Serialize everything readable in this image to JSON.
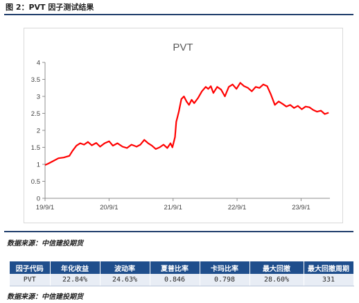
{
  "figure_title": "图 2：PVT 因子测试结果",
  "source_label": "数据来源：中信建投期货",
  "table": {
    "headers": [
      "因子代码",
      "年化收益",
      "波动率",
      "夏普比率",
      "卡玛比率",
      "最大回撤",
      "最大回撤周期"
    ],
    "rows": [
      [
        "PVT",
        "22.84%",
        "24.63%",
        "0.846",
        "0.798",
        "28.60%",
        "331"
      ]
    ]
  },
  "chart_data": {
    "type": "line",
    "title": "PVT",
    "xlabel": "",
    "ylabel": "",
    "ylim": [
      0,
      4
    ],
    "y_ticks": [
      "0",
      "0.5",
      "1",
      "1.5",
      "2",
      "2.5",
      "3",
      "3.5",
      "4"
    ],
    "x_ticks": [
      "19/9/1",
      "20/9/1",
      "21/9/1",
      "22/9/1",
      "23/9/1"
    ],
    "x_tick_values": [
      2019.67,
      2020.67,
      2021.67,
      2022.67,
      2023.67
    ],
    "xlim": [
      2019.67,
      2024.12
    ],
    "grid": false,
    "legend": "none",
    "line_color": "#ff0000",
    "series": [
      {
        "x": [
          2019.67,
          2019.72,
          2019.8,
          2019.88,
          2019.96,
          2020.05,
          2020.1,
          2020.16,
          2020.22,
          2020.28,
          2020.34,
          2020.4,
          2020.47,
          2020.53,
          2020.6,
          2020.67,
          2020.73,
          2020.8,
          2020.88,
          2020.95,
          2021.02,
          2021.1,
          2021.16,
          2021.22,
          2021.28,
          2021.34,
          2021.4,
          2021.46,
          2021.52,
          2021.58,
          2021.63,
          2021.66,
          2021.7,
          2021.72,
          2021.76,
          2021.8,
          2021.84,
          2021.88,
          2021.92,
          2021.96,
          2022.0,
          2022.06,
          2022.12,
          2022.18,
          2022.22,
          2022.26,
          2022.3,
          2022.36,
          2022.42,
          2022.48,
          2022.54,
          2022.6,
          2022.66,
          2022.72,
          2022.78,
          2022.84,
          2022.9,
          2022.96,
          2023.02,
          2023.08,
          2023.14,
          2023.2,
          2023.26,
          2023.32,
          2023.38,
          2023.44,
          2023.5,
          2023.56,
          2023.62,
          2023.68,
          2023.74,
          2023.8,
          2023.86,
          2023.92,
          2023.98,
          2024.04,
          2024.1
        ],
        "y": [
          0.98,
          1.02,
          1.1,
          1.18,
          1.2,
          1.25,
          1.4,
          1.55,
          1.62,
          1.58,
          1.66,
          1.56,
          1.63,
          1.52,
          1.62,
          1.68,
          1.55,
          1.62,
          1.52,
          1.48,
          1.58,
          1.52,
          1.58,
          1.72,
          1.62,
          1.55,
          1.45,
          1.5,
          1.58,
          1.48,
          1.62,
          1.5,
          1.8,
          2.25,
          2.55,
          2.92,
          3.0,
          2.85,
          2.75,
          2.9,
          2.8,
          2.95,
          3.15,
          3.28,
          3.22,
          3.3,
          3.1,
          3.28,
          3.2,
          3.0,
          3.28,
          3.35,
          3.22,
          3.4,
          3.3,
          3.25,
          3.15,
          3.28,
          3.25,
          3.35,
          3.3,
          3.05,
          2.75,
          2.85,
          2.78,
          2.7,
          2.75,
          2.66,
          2.72,
          2.62,
          2.7,
          2.68,
          2.6,
          2.55,
          2.58,
          2.48,
          2.52
        ]
      }
    ]
  }
}
